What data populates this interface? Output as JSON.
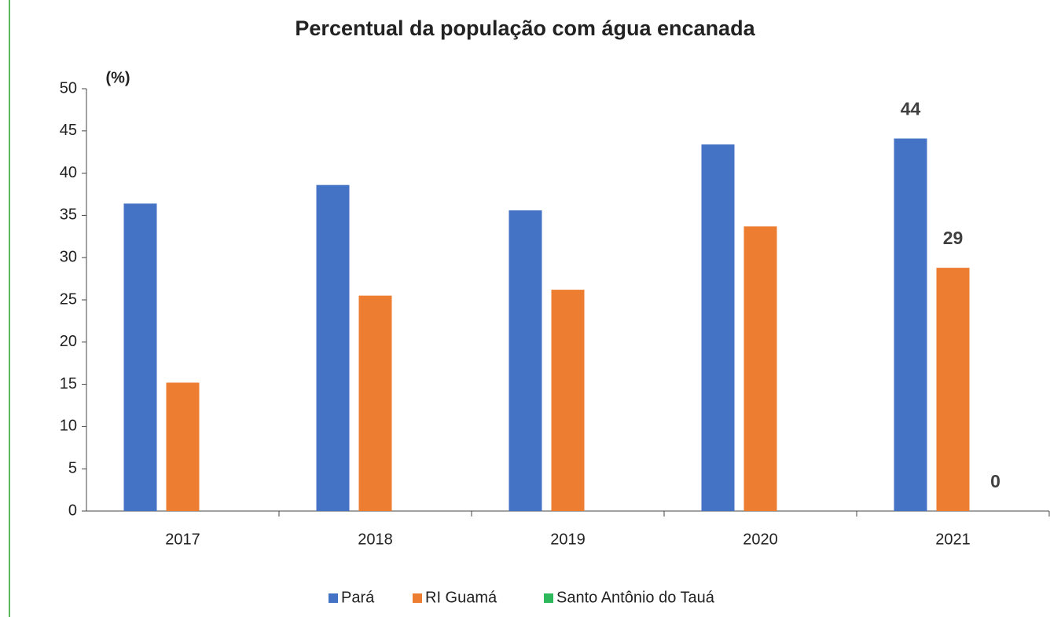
{
  "chart_data": {
    "type": "bar",
    "title": "Percentual da população com água encanada",
    "y_label": "(%)",
    "categories": [
      "2017",
      "2018",
      "2019",
      "2020",
      "2021"
    ],
    "series": [
      {
        "name": "Pará",
        "color": "#4472c4",
        "values": [
          36.4,
          38.6,
          35.6,
          43.4,
          44.1
        ],
        "value_labels": [
          null,
          null,
          null,
          null,
          "44"
        ]
      },
      {
        "name": "RI Guamá",
        "color": "#ed7d31",
        "values": [
          15.2,
          25.5,
          26.2,
          33.7,
          28.8
        ],
        "value_labels": [
          null,
          null,
          null,
          null,
          "29"
        ]
      },
      {
        "name": "Santo Antônio do Tauá",
        "color": "#2db85c",
        "values": [
          null,
          null,
          null,
          null,
          0
        ],
        "value_labels": [
          null,
          null,
          null,
          null,
          "0"
        ]
      }
    ],
    "ylim": [
      0,
      50
    ],
    "yticks": [
      0,
      5,
      10,
      15,
      20,
      25,
      30,
      35,
      40,
      45,
      50
    ],
    "grid": false,
    "legend": "bottom"
  }
}
